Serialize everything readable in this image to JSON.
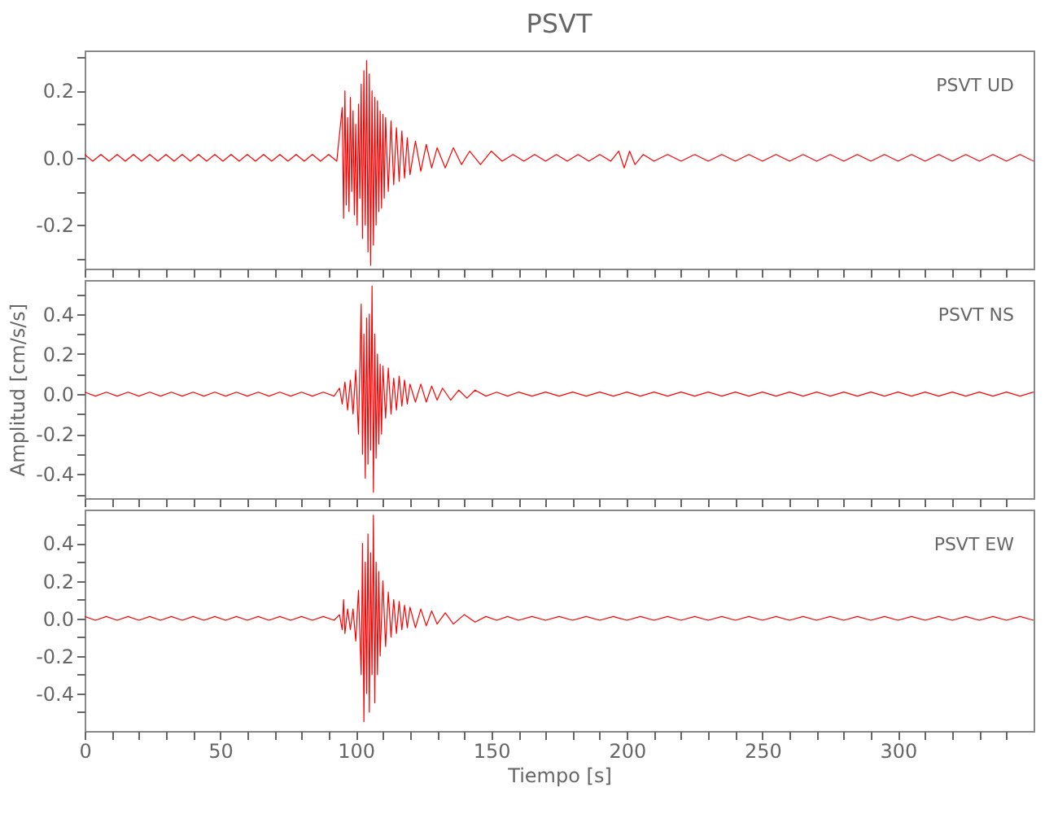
{
  "chart_data": [
    {
      "type": "line",
      "title": "PSVT",
      "annotations": [
        "PSVT UD"
      ],
      "xlim": [
        0,
        350
      ],
      "ylim": [
        -0.33,
        0.32
      ],
      "xticks": [
        0,
        {
          "value": 10,
          "label": null
        },
        {
          "value": 20,
          "label": null
        },
        {
          "value": 30,
          "label": null
        },
        {
          "value": 40,
          "label": null
        },
        50,
        {
          "value": 60,
          "label": null
        },
        {
          "value": 70,
          "label": null
        },
        {
          "value": 80,
          "label": null
        },
        {
          "value": 90,
          "label": null
        },
        100,
        {
          "value": 110,
          "label": null
        },
        {
          "value": 120,
          "label": null
        },
        {
          "value": 130,
          "label": null
        },
        {
          "value": 140,
          "label": null
        },
        150,
        {
          "value": 160,
          "label": null
        },
        {
          "value": 170,
          "label": null
        },
        {
          "value": 180,
          "label": null
        },
        {
          "value": 190,
          "label": null
        },
        200,
        {
          "value": 210,
          "label": null
        },
        {
          "value": 220,
          "label": null
        },
        {
          "value": 230,
          "label": null
        },
        {
          "value": 240,
          "label": null
        },
        250,
        {
          "value": 260,
          "label": null
        },
        {
          "value": 270,
          "label": null
        },
        {
          "value": 280,
          "label": null
        },
        {
          "value": 290,
          "label": null
        },
        300,
        {
          "value": 310,
          "label": null
        },
        {
          "value": 320,
          "label": null
        },
        {
          "value": 330,
          "label": null
        },
        {
          "value": 340,
          "label": null
        }
      ],
      "yticks": [
        {
          "value": -0.3,
          "label": null
        },
        -0.2,
        {
          "value": -0.1,
          "label": null
        },
        {
          "value": 0,
          "label": "0.0"
        },
        {
          "value": 0.1,
          "label": null
        },
        0.2,
        {
          "value": 0.3,
          "label": null
        }
      ],
      "tick_labels": "y",
      "grid": false,
      "x": [
        0,
        3,
        6,
        9,
        12,
        15,
        18,
        21,
        24,
        27,
        30,
        33,
        36,
        39,
        42,
        45,
        48,
        51,
        54,
        57,
        60,
        63,
        66,
        69,
        72,
        75,
        78,
        81,
        84,
        87,
        90,
        93,
        95,
        95.5,
        96,
        96.5,
        97,
        97.5,
        98,
        98.5,
        99,
        99.5,
        100,
        100.5,
        101,
        101.5,
        102,
        102.5,
        103,
        103.5,
        104,
        104.5,
        105,
        105.5,
        106,
        106.5,
        107,
        107.5,
        108,
        108.5,
        109,
        109.5,
        110,
        110.5,
        111,
        112,
        113,
        114,
        115,
        116,
        117,
        118,
        119,
        120,
        122,
        124,
        126,
        128,
        130,
        133,
        136,
        139,
        142,
        146,
        150,
        154,
        158,
        162,
        166,
        170,
        174,
        178,
        182,
        186,
        190,
        194,
        197,
        199,
        201,
        203,
        206,
        210,
        215,
        220,
        225,
        230,
        235,
        240,
        245,
        250,
        255,
        260,
        265,
        270,
        275,
        280,
        285,
        290,
        295,
        300,
        305,
        310,
        315,
        320,
        325,
        330,
        335,
        340,
        345,
        350
      ],
      "series": [
        {
          "color": "#ff0000",
          "values": [
            0.01,
            -0.01,
            0.01,
            -0.01,
            0.01,
            -0.01,
            0.01,
            -0.01,
            0.01,
            -0.01,
            0.01,
            -0.01,
            0.01,
            -0.01,
            0.01,
            -0.01,
            0.01,
            -0.01,
            0.01,
            -0.01,
            0.01,
            -0.01,
            0.01,
            -0.01,
            0.01,
            -0.01,
            0.01,
            -0.01,
            0.01,
            -0.01,
            0.01,
            -0.01,
            0.15,
            -0.18,
            0.2,
            -0.14,
            0.12,
            -0.16,
            0.18,
            -0.1,
            0.14,
            -0.17,
            0.1,
            -0.2,
            0.16,
            -0.12,
            0.22,
            -0.24,
            0.26,
            -0.2,
            0.29,
            -0.28,
            0.25,
            -0.32,
            0.2,
            -0.26,
            0.18,
            -0.2,
            0.17,
            -0.16,
            0.14,
            -0.15,
            0.13,
            -0.12,
            0.12,
            -0.1,
            0.11,
            -0.08,
            0.09,
            -0.07,
            0.08,
            -0.06,
            0.06,
            -0.05,
            0.05,
            -0.04,
            0.04,
            -0.03,
            0.03,
            -0.03,
            0.03,
            -0.02,
            0.02,
            -0.02,
            0.02,
            -0.01,
            0.01,
            -0.01,
            0.01,
            -0.01,
            0.01,
            -0.01,
            0.01,
            -0.01,
            0.01,
            -0.01,
            0.02,
            -0.03,
            0.02,
            -0.02,
            0.01,
            -0.01,
            0.01,
            -0.01,
            0.01,
            -0.01,
            0.01,
            -0.01,
            0.01,
            -0.01,
            0.01,
            -0.01,
            0.01,
            -0.01,
            0.01,
            -0.01,
            0.01,
            -0.01,
            0.01,
            -0.01,
            0.01,
            -0.01,
            0.01,
            -0.01,
            0.01,
            -0.01,
            0.01,
            -0.01,
            0.01,
            -0.01
          ]
        }
      ]
    },
    {
      "type": "line",
      "ylabel": "Amplitud [cm/s/s]",
      "annotations": [
        "PSVT NS"
      ],
      "xlim": [
        0,
        350
      ],
      "ylim": [
        -0.52,
        0.57
      ],
      "xticks": [
        0,
        {
          "value": 10,
          "label": null
        },
        {
          "value": 20,
          "label": null
        },
        {
          "value": 30,
          "label": null
        },
        {
          "value": 40,
          "label": null
        },
        50,
        {
          "value": 60,
          "label": null
        },
        {
          "value": 70,
          "label": null
        },
        {
          "value": 80,
          "label": null
        },
        {
          "value": 90,
          "label": null
        },
        100,
        {
          "value": 110,
          "label": null
        },
        {
          "value": 120,
          "label": null
        },
        {
          "value": 130,
          "label": null
        },
        {
          "value": 140,
          "label": null
        },
        150,
        {
          "value": 160,
          "label": null
        },
        {
          "value": 170,
          "label": null
        },
        {
          "value": 180,
          "label": null
        },
        {
          "value": 190,
          "label": null
        },
        200,
        {
          "value": 210,
          "label": null
        },
        {
          "value": 220,
          "label": null
        },
        {
          "value": 230,
          "label": null
        },
        {
          "value": 240,
          "label": null
        },
        250,
        {
          "value": 260,
          "label": null
        },
        {
          "value": 270,
          "label": null
        },
        {
          "value": 280,
          "label": null
        },
        {
          "value": 290,
          "label": null
        },
        300,
        {
          "value": 310,
          "label": null
        },
        {
          "value": 320,
          "label": null
        },
        {
          "value": 330,
          "label": null
        },
        {
          "value": 340,
          "label": null
        }
      ],
      "yticks": [
        {
          "value": -0.5,
          "label": null
        },
        -0.4,
        {
          "value": -0.3,
          "label": null
        },
        -0.2,
        {
          "value": -0.1,
          "label": null
        },
        {
          "value": 0,
          "label": "0.0"
        },
        {
          "value": 0.1,
          "label": null
        },
        0.2,
        {
          "value": 0.3,
          "label": null
        },
        0.4,
        {
          "value": 0.5,
          "label": null
        }
      ],
      "tick_labels": "y",
      "grid": false,
      "x": [
        0,
        4,
        8,
        12,
        16,
        20,
        24,
        28,
        32,
        36,
        40,
        44,
        48,
        52,
        56,
        60,
        64,
        68,
        72,
        76,
        80,
        84,
        88,
        92,
        94,
        95,
        96,
        97,
        98,
        99,
        100,
        101,
        102,
        102.5,
        103,
        103.5,
        104,
        104.5,
        105,
        105.5,
        106,
        106.5,
        107,
        107.5,
        108,
        108.5,
        109,
        109.5,
        110,
        111,
        112,
        113,
        114,
        115,
        116,
        117,
        118,
        119,
        120,
        122,
        124,
        126,
        128,
        130,
        132,
        135,
        138,
        141,
        144,
        148,
        152,
        156,
        160,
        165,
        170,
        175,
        180,
        185,
        190,
        195,
        200,
        205,
        210,
        215,
        220,
        225,
        230,
        235,
        240,
        245,
        250,
        255,
        260,
        265,
        270,
        275,
        280,
        285,
        290,
        295,
        300,
        305,
        310,
        315,
        320,
        325,
        330,
        335,
        340,
        345,
        350
      ],
      "series": [
        {
          "color": "#ff0000",
          "values": [
            0.01,
            -0.01,
            0.01,
            -0.01,
            0.01,
            -0.01,
            0.01,
            -0.01,
            0.01,
            -0.01,
            0.01,
            -0.01,
            0.01,
            -0.01,
            0.01,
            -0.01,
            0.01,
            -0.01,
            0.01,
            -0.01,
            0.01,
            -0.01,
            0.01,
            -0.01,
            0.03,
            -0.05,
            0.06,
            -0.08,
            0.07,
            -0.1,
            0.12,
            -0.2,
            0.45,
            -0.3,
            0.3,
            -0.42,
            0.38,
            -0.35,
            0.4,
            -0.28,
            0.54,
            -0.49,
            0.3,
            -0.32,
            0.2,
            -0.25,
            0.15,
            -0.2,
            0.14,
            -0.12,
            0.13,
            -0.1,
            0.08,
            -0.08,
            0.09,
            -0.06,
            0.07,
            -0.05,
            0.05,
            -0.04,
            0.05,
            -0.04,
            0.04,
            -0.03,
            0.03,
            -0.03,
            0.02,
            -0.02,
            0.02,
            -0.01,
            0.01,
            -0.01,
            0.01,
            -0.01,
            0.01,
            -0.01,
            0.01,
            -0.01,
            0.01,
            -0.01,
            0.01,
            -0.01,
            0.01,
            -0.01,
            0.01,
            -0.01,
            0.01,
            -0.01,
            0.01,
            -0.01,
            0.01,
            -0.01,
            0.01,
            -0.01,
            0.01,
            -0.01,
            0.01,
            -0.01,
            0.01,
            -0.01,
            0.01,
            -0.01,
            0.01,
            -0.01,
            0.01,
            -0.01,
            0.01,
            -0.01,
            0.01,
            -0.01,
            0.01
          ]
        }
      ]
    },
    {
      "type": "line",
      "xlabel": "Tiempo [s]",
      "annotations": [
        "PSVT EW"
      ],
      "xlim": [
        0,
        350
      ],
      "ylim": [
        -0.6,
        0.58
      ],
      "xticks": [
        0,
        {
          "value": 10,
          "label": null
        },
        {
          "value": 20,
          "label": null
        },
        {
          "value": 30,
          "label": null
        },
        {
          "value": 40,
          "label": null
        },
        50,
        {
          "value": 60,
          "label": null
        },
        {
          "value": 70,
          "label": null
        },
        {
          "value": 80,
          "label": null
        },
        {
          "value": 90,
          "label": null
        },
        100,
        {
          "value": 110,
          "label": null
        },
        {
          "value": 120,
          "label": null
        },
        {
          "value": 130,
          "label": null
        },
        {
          "value": 140,
          "label": null
        },
        150,
        {
          "value": 160,
          "label": null
        },
        {
          "value": 170,
          "label": null
        },
        {
          "value": 180,
          "label": null
        },
        {
          "value": 190,
          "label": null
        },
        200,
        {
          "value": 210,
          "label": null
        },
        {
          "value": 220,
          "label": null
        },
        {
          "value": 230,
          "label": null
        },
        {
          "value": 240,
          "label": null
        },
        250,
        {
          "value": 260,
          "label": null
        },
        {
          "value": 270,
          "label": null
        },
        {
          "value": 280,
          "label": null
        },
        {
          "value": 290,
          "label": null
        },
        300,
        {
          "value": 310,
          "label": null
        },
        {
          "value": 320,
          "label": null
        },
        {
          "value": 330,
          "label": null
        },
        {
          "value": 340,
          "label": null
        }
      ],
      "yticks": [
        {
          "value": -0.5,
          "label": null
        },
        -0.4,
        {
          "value": -0.3,
          "label": null
        },
        -0.2,
        {
          "value": -0.1,
          "label": null
        },
        {
          "value": 0,
          "label": "0.0"
        },
        {
          "value": 0.1,
          "label": null
        },
        0.2,
        {
          "value": 0.3,
          "label": null
        },
        0.4,
        {
          "value": 0.5,
          "label": null
        }
      ],
      "grid": false,
      "x": [
        0,
        4,
        8,
        12,
        16,
        20,
        24,
        28,
        32,
        36,
        40,
        44,
        48,
        52,
        56,
        60,
        64,
        68,
        72,
        76,
        80,
        84,
        88,
        92,
        94,
        95,
        95.5,
        96,
        97,
        98,
        99,
        100,
        101,
        102,
        102.5,
        103,
        103.5,
        104,
        104.5,
        105,
        105.5,
        106,
        106.5,
        107,
        107.5,
        108,
        108.5,
        109,
        110,
        111,
        112,
        113,
        114,
        115,
        116,
        117,
        118,
        119,
        120,
        122,
        124,
        126,
        128,
        130,
        133,
        136,
        140,
        144,
        148,
        152,
        156,
        160,
        165,
        170,
        175,
        180,
        185,
        190,
        195,
        200,
        205,
        210,
        215,
        220,
        225,
        230,
        235,
        240,
        245,
        250,
        255,
        260,
        265,
        270,
        275,
        280,
        285,
        290,
        295,
        300,
        305,
        310,
        315,
        320,
        325,
        330,
        335,
        340,
        345,
        350
      ],
      "series": [
        {
          "color": "#ff0000",
          "values": [
            0.01,
            -0.01,
            0.01,
            -0.01,
            0.01,
            -0.01,
            0.01,
            -0.01,
            0.01,
            -0.01,
            0.01,
            -0.01,
            0.01,
            -0.01,
            0.01,
            -0.01,
            0.01,
            -0.01,
            0.01,
            -0.01,
            0.01,
            -0.01,
            0.01,
            -0.01,
            0.02,
            -0.06,
            0.1,
            -0.08,
            0.05,
            -0.06,
            0.05,
            -0.12,
            0.15,
            -0.3,
            0.4,
            -0.55,
            0.3,
            -0.4,
            0.45,
            -0.5,
            0.35,
            -0.3,
            0.55,
            -0.45,
            0.3,
            -0.3,
            0.25,
            -0.2,
            0.2,
            -0.15,
            0.14,
            -0.1,
            0.1,
            -0.08,
            0.09,
            -0.06,
            0.07,
            -0.05,
            0.06,
            -0.05,
            0.05,
            -0.04,
            0.04,
            -0.03,
            0.03,
            -0.03,
            0.02,
            -0.02,
            0.01,
            -0.01,
            0.01,
            -0.01,
            0.01,
            -0.01,
            0.01,
            -0.01,
            0.01,
            -0.01,
            0.01,
            -0.01,
            0.01,
            -0.01,
            0.01,
            -0.01,
            0.01,
            -0.01,
            0.01,
            -0.01,
            0.01,
            -0.01,
            0.01,
            -0.01,
            0.01,
            -0.01,
            0.01,
            -0.01,
            0.01,
            -0.01,
            0.01,
            -0.01,
            0.01,
            -0.01,
            0.01,
            -0.01,
            0.01,
            -0.01,
            0.01,
            -0.01,
            0.01,
            -0.01
          ]
        }
      ]
    }
  ]
}
